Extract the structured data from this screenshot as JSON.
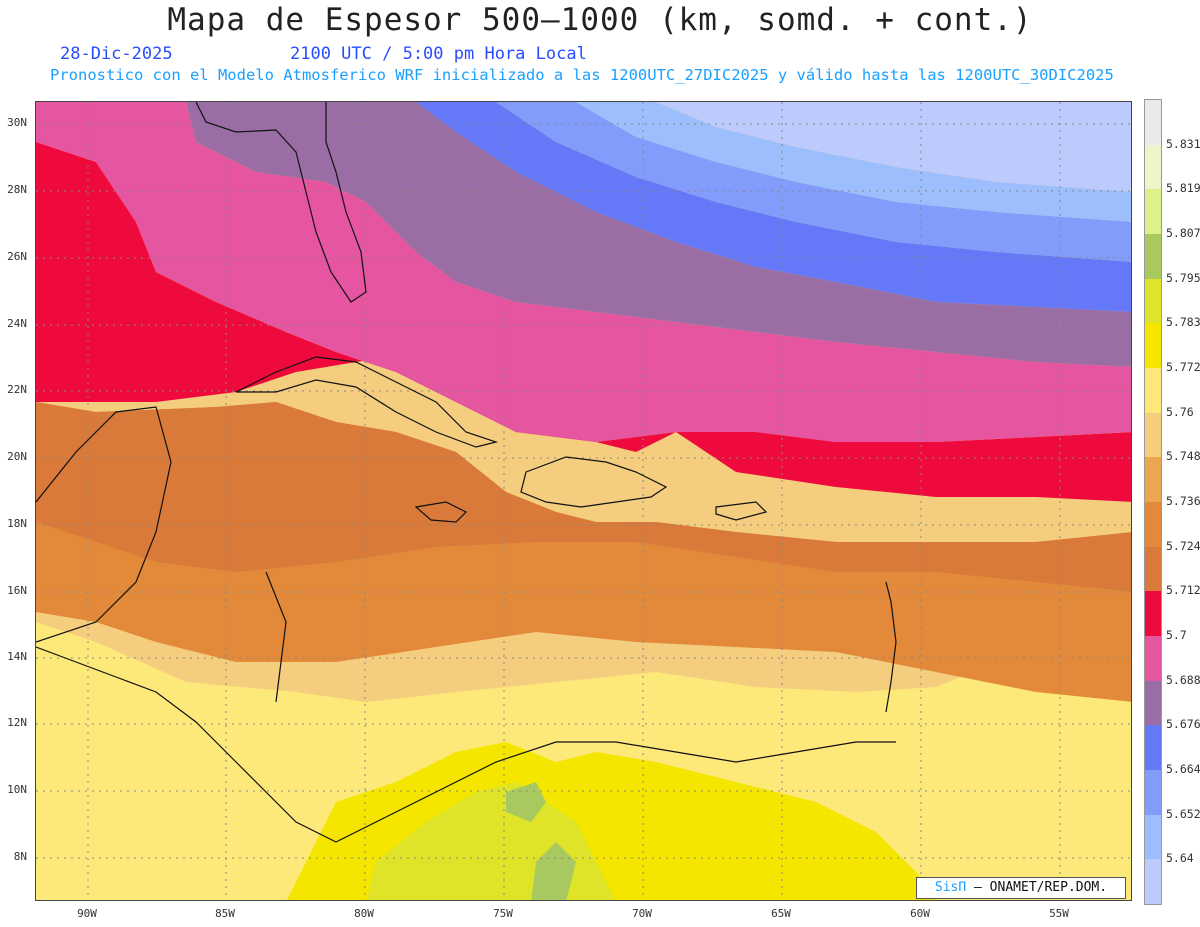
{
  "header": {
    "title": "Mapa de Espesor 500–1000 (km, somd. + cont.)",
    "date": "28-Dic-2025",
    "time": "2100 UTC / 5:00 pm Hora Local",
    "subtitle": "Pronostico con el Modelo Atmosferico WRF inicializado a las 1200UTC_27DIC2025 y válido hasta las  1200UTC_30DIC2025"
  },
  "axes": {
    "lat_labels": [
      "30N",
      "28N",
      "26N",
      "24N",
      "22N",
      "20N",
      "18N",
      "16N",
      "14N",
      "12N",
      "10N",
      "8N"
    ],
    "lon_labels": [
      "90W",
      "85W",
      "80W",
      "75W",
      "70W",
      "65W",
      "60W",
      "55W"
    ]
  },
  "colorbar": {
    "labels": [
      "5.831",
      "5.819",
      "5.807",
      "5.795",
      "5.783",
      "5.772",
      "5.76",
      "5.748",
      "5.736",
      "5.724",
      "5.712",
      "5.7",
      "5.688",
      "5.676",
      "5.664",
      "5.652",
      "5.64"
    ],
    "colors": [
      "#eaeaea",
      "#eef5c8",
      "#dcf08c",
      "#a8c860",
      "#e0e428",
      "#f5e600",
      "#fde87a",
      "#f4cd7e",
      "#eca74e",
      "#e38a3a",
      "#d97a3a",
      "#ee0a3c",
      "#e655a0",
      "#9a6ea4",
      "#6478f8",
      "#829cfc",
      "#9cbefc",
      "#bccafc"
    ]
  },
  "credit": {
    "brand": "SisΠ",
    "text": "– ONAMET/REP.DOM."
  }
}
